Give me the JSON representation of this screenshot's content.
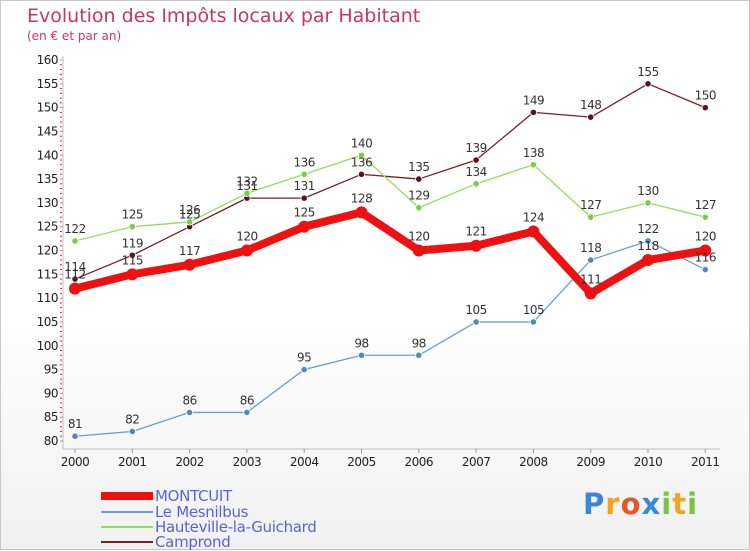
{
  "header": {
    "title": "Evolution des Impôts locaux par Habitant",
    "subtitle": "(en € et par an)"
  },
  "colors": {
    "title": "#c5366a",
    "axis": "#c0c0c0",
    "tick_mark": "#d6232c",
    "legend_text": "#5a63d8"
  },
  "chart_data": {
    "type": "line",
    "title": "Evolution des Impôts locaux par Habitant",
    "subtitle": "(en € et par an)",
    "xlabel": "",
    "ylabel": "",
    "x": [
      "2000",
      "2001",
      "2002",
      "2003",
      "2004",
      "2005",
      "2006",
      "2007",
      "2008",
      "2009",
      "2010",
      "2011"
    ],
    "ylim": [
      80,
      160
    ],
    "yticks": [
      80,
      85,
      90,
      95,
      100,
      105,
      110,
      115,
      120,
      125,
      130,
      135,
      140,
      145,
      150,
      155,
      160
    ],
    "grid": false,
    "legend_position": "bottom-left",
    "series": [
      {
        "name": "Camprond",
        "color": "#7a1e25",
        "marker": "#5c1218",
        "width": 1.3,
        "values": [
          114,
          119,
          125,
          131,
          131,
          136,
          135,
          139,
          149,
          148,
          155,
          150
        ]
      },
      {
        "name": "Hauteville-la-Guichard",
        "color": "#92de58",
        "marker": "#7ccc48",
        "width": 1.3,
        "values": [
          122,
          125,
          126,
          132,
          136,
          140,
          129,
          134,
          138,
          127,
          130,
          127
        ]
      },
      {
        "name": "Le Mesnilbus",
        "color": "#6aa0d2",
        "marker": "#4e8ac6",
        "width": 1.3,
        "values": [
          81,
          82,
          86,
          86,
          95,
          98,
          98,
          105,
          105,
          118,
          122,
          116
        ]
      },
      {
        "name": "MONTCUIT",
        "color": "#ef1111",
        "marker": "#ef1111",
        "width": 8,
        "values": [
          112,
          115,
          117,
          120,
          125,
          128,
          120,
          121,
          124,
          111,
          118,
          120
        ]
      }
    ]
  },
  "legend": [
    {
      "label": "MONTCUIT",
      "color": "#ef1111"
    },
    {
      "label": "Le Mesnilbus",
      "color": "#6aa0d2"
    },
    {
      "label": "Hauteville-la-Guichard",
      "color": "#92de58"
    },
    {
      "label": "Camprond",
      "color": "#7a1e25"
    }
  ],
  "logo": {
    "text": "Proxiti",
    "letters": [
      {
        "ch": "P",
        "color": "#3a87d8"
      },
      {
        "ch": "r",
        "color": "#f2a321"
      },
      {
        "ch": "o",
        "color": "#e8552b"
      },
      {
        "ch": "x",
        "color": "#3a87d8"
      },
      {
        "ch": "i",
        "color": "#7cc242"
      },
      {
        "ch": "t",
        "color": "#f2a321"
      },
      {
        "ch": "i",
        "color": "#7cc242"
      }
    ]
  }
}
